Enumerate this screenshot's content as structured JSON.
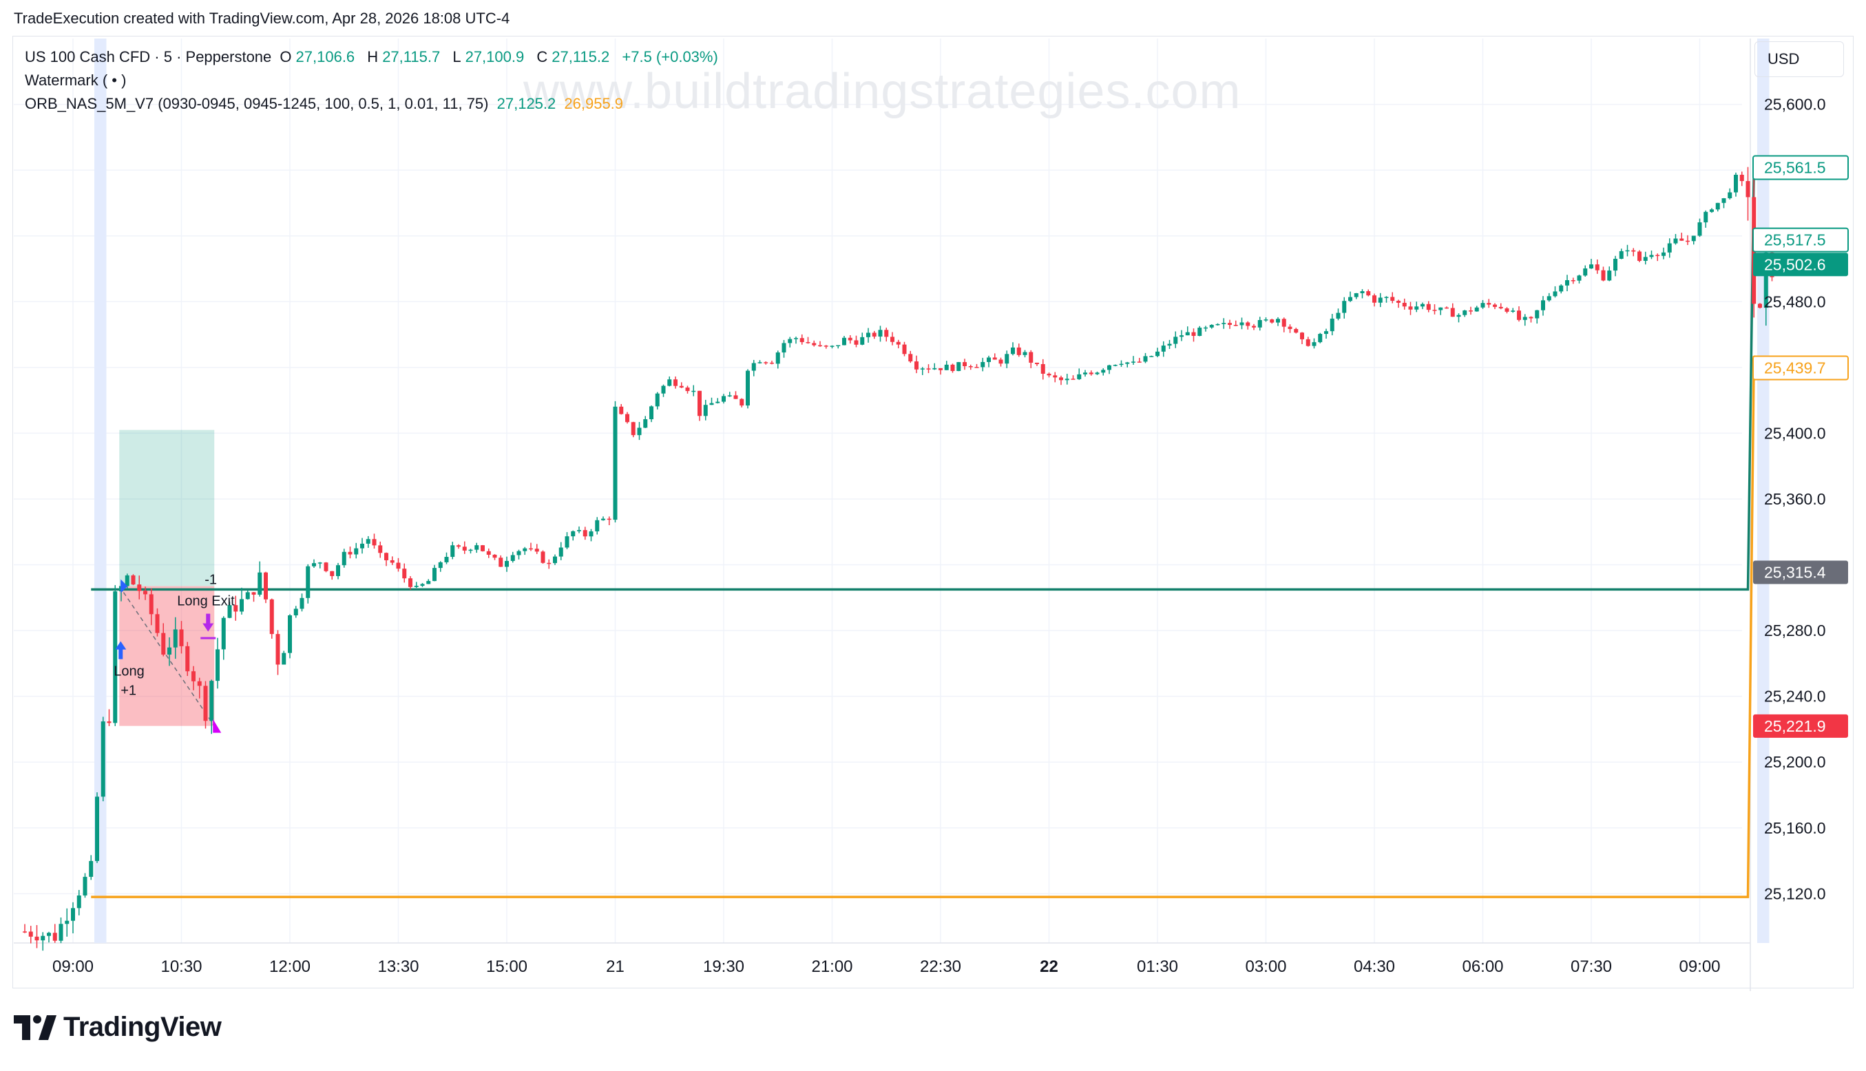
{
  "header": {
    "title": "TradeExecution created with TradingView.com, Apr 28, 2026 18:08 UTC-4"
  },
  "legend": {
    "symbol": "US 100 Cash CFD · 5 · Pepperstone",
    "o_label": "O",
    "o_value": "27,106.6",
    "h_label": "H",
    "h_value": "27,115.7",
    "l_label": "L",
    "l_value": "27,100.9",
    "c_label": "C",
    "c_value": "27,115.2",
    "change": "+7.5 (+0.03%)",
    "watermark_label": "Watermark ( • )",
    "strategy_label": "ORB_NAS_5M_V7 (0930-0945, 0945-1245, 100, 0.5, 1, 0.01, 11, 75)",
    "strategy_value1": "27,125.2",
    "strategy_value2": "26,955.9"
  },
  "watermark_text": "www.buildtradingstrategies.com",
  "currency": "USD",
  "footer": {
    "brand": "TradingView"
  },
  "colors": {
    "up": "#089981",
    "down": "#f23645",
    "orange": "#f7a21b",
    "teal": "#13806b",
    "session": "#e3ebfd"
  },
  "chart_data": {
    "type": "candlestick",
    "y_axis": {
      "min": 25090,
      "max": 25640,
      "ticks": [
        25120,
        25160,
        25200,
        25240,
        25280,
        25320,
        25360,
        25400,
        25440,
        25480,
        25520,
        25560,
        25600
      ],
      "tick_labels": [
        "25,120.0",
        "25,160.0",
        "25,200.0",
        "25,240.0",
        "25,280.0",
        "",
        "25,360.0",
        "25,400.0",
        "",
        "25,480.0",
        "",
        "",
        "25,600.0"
      ]
    },
    "x_axis": {
      "ticks": [
        {
          "idx": 8,
          "label": "09:00",
          "bold": false
        },
        {
          "idx": 26,
          "label": "10:30",
          "bold": false
        },
        {
          "idx": 44,
          "label": "12:00",
          "bold": false
        },
        {
          "idx": 62,
          "label": "13:30",
          "bold": false
        },
        {
          "idx": 80,
          "label": "15:00",
          "bold": false
        },
        {
          "idx": 98,
          "label": "21",
          "bold": false
        },
        {
          "idx": 116,
          "label": "19:30",
          "bold": false
        },
        {
          "idx": 134,
          "label": "21:00",
          "bold": false
        },
        {
          "idx": 152,
          "label": "22:30",
          "bold": false
        },
        {
          "idx": 170,
          "label": "22",
          "bold": true
        },
        {
          "idx": 188,
          "label": "01:30",
          "bold": false
        },
        {
          "idx": 206,
          "label": "03:00",
          "bold": false
        },
        {
          "idx": 224,
          "label": "04:30",
          "bold": false
        },
        {
          "idx": 242,
          "label": "06:00",
          "bold": false
        },
        {
          "idx": 260,
          "label": "07:30",
          "bold": false
        },
        {
          "idx": 278,
          "label": "09:00",
          "bold": false
        }
      ]
    },
    "price_labels": [
      {
        "value": 25561.5,
        "text": "25,561.5",
        "style": "outline-teal"
      },
      {
        "value": 25517.5,
        "text": "25,517.5",
        "style": "outline-teal"
      },
      {
        "value": 25502.6,
        "text": "25,502.6",
        "style": "fill-teal"
      },
      {
        "value": 25439.7,
        "text": "25,439.7",
        "style": "outline-orange"
      },
      {
        "value": 25315.4,
        "text": "25,315.4",
        "style": "fill-gray"
      },
      {
        "value": 25221.9,
        "text": "25,221.9",
        "style": "fill-red"
      }
    ],
    "trade": {
      "entry_idx": 15,
      "exit_idx": 31,
      "entry_price": 25307,
      "target_price": 25402,
      "stop_price": 25222,
      "entry_label": "Long",
      "entry_qty": "+1",
      "exit_label": "Long Exit",
      "exit_qty": "-1"
    },
    "orb_high": [
      {
        "idx": 11,
        "value": 25305
      },
      {
        "idx": 286,
        "value": 25305
      },
      {
        "idx": 287,
        "value": 25561.5
      },
      {
        "idx": 290,
        "value": 25561.5
      }
    ],
    "orb_low": [
      {
        "idx": 11,
        "value": 25118
      },
      {
        "idx": 286,
        "value": 25118
      },
      {
        "idx": 287,
        "value": 25447
      },
      {
        "idx": 288,
        "value": 25439.7
      },
      {
        "idx": 290,
        "value": 25439.7
      }
    ],
    "session_bands": [
      {
        "from": 12,
        "to": 14
      },
      {
        "from": 288,
        "to": 290
      }
    ],
    "anchor_points": [
      [
        0,
        25097
      ],
      [
        5,
        25094
      ],
      [
        9,
        25122
      ],
      [
        11,
        25135
      ],
      [
        13,
        25222
      ],
      [
        14,
        25228
      ],
      [
        15,
        25300
      ],
      [
        17,
        25312
      ],
      [
        19,
        25305
      ],
      [
        21,
        25290
      ],
      [
        23,
        25268
      ],
      [
        25,
        25276
      ],
      [
        27,
        25260
      ],
      [
        29,
        25244
      ],
      [
        30,
        25230
      ],
      [
        31,
        25250
      ],
      [
        33,
        25288
      ],
      [
        35,
        25295
      ],
      [
        37,
        25300
      ],
      [
        39,
        25312
      ],
      [
        40,
        25299
      ],
      [
        41,
        25278
      ],
      [
        42,
        25262
      ],
      [
        43,
        25270
      ],
      [
        44,
        25288
      ],
      [
        46,
        25302
      ],
      [
        47,
        25318
      ],
      [
        49,
        25322
      ],
      [
        51,
        25314
      ],
      [
        53,
        25326
      ],
      [
        55,
        25330
      ],
      [
        57,
        25336
      ],
      [
        59,
        25325
      ],
      [
        61,
        25321
      ],
      [
        63,
        25312
      ],
      [
        65,
        25305
      ],
      [
        67,
        25310
      ],
      [
        69,
        25322
      ],
      [
        71,
        25330
      ],
      [
        73,
        25329
      ],
      [
        75,
        25333
      ],
      [
        77,
        25325
      ],
      [
        79,
        25320
      ],
      [
        81,
        25328
      ],
      [
        83,
        25330
      ],
      [
        85,
        25326
      ],
      [
        87,
        25320
      ],
      [
        89,
        25332
      ],
      [
        91,
        25340
      ],
      [
        93,
        25338
      ],
      [
        95,
        25346
      ],
      [
        97,
        25349
      ],
      [
        98,
        25415
      ],
      [
        100,
        25405
      ],
      [
        101,
        25400
      ],
      [
        103,
        25408
      ],
      [
        105,
        25425
      ],
      [
        107,
        25432
      ],
      [
        109,
        25430
      ],
      [
        111,
        25425
      ],
      [
        112,
        25412
      ],
      [
        114,
        25418
      ],
      [
        116,
        25422
      ],
      [
        118,
        25420
      ],
      [
        119,
        25418
      ],
      [
        120,
        25440
      ],
      [
        122,
        25445
      ],
      [
        124,
        25444
      ],
      [
        126,
        25455
      ],
      [
        128,
        25458
      ],
      [
        130,
        25455
      ],
      [
        132,
        25452
      ],
      [
        134,
        25452
      ],
      [
        136,
        25457
      ],
      [
        138,
        25456
      ],
      [
        140,
        25459
      ],
      [
        142,
        25461
      ],
      [
        144,
        25457
      ],
      [
        146,
        25450
      ],
      [
        148,
        25441
      ],
      [
        150,
        25440
      ],
      [
        152,
        25440
      ],
      [
        154,
        25440
      ],
      [
        156,
        25442
      ],
      [
        158,
        25442
      ],
      [
        160,
        25444
      ],
      [
        162,
        25444
      ],
      [
        164,
        25450
      ],
      [
        166,
        25448
      ],
      [
        168,
        25440
      ],
      [
        170,
        25434
      ],
      [
        172,
        25432
      ],
      [
        174,
        25432
      ],
      [
        176,
        25437
      ],
      [
        178,
        25438
      ],
      [
        180,
        25442
      ],
      [
        182,
        25444
      ],
      [
        184,
        25442
      ],
      [
        186,
        25445
      ],
      [
        188,
        25449
      ],
      [
        190,
        25455
      ],
      [
        192,
        25460
      ],
      [
        194,
        25461
      ],
      [
        196,
        25463
      ],
      [
        198,
        25465
      ],
      [
        200,
        25466
      ],
      [
        202,
        25469
      ],
      [
        204,
        25466
      ],
      [
        206,
        25468
      ],
      [
        208,
        25470
      ],
      [
        210,
        25464
      ],
      [
        212,
        25455
      ],
      [
        214,
        25455
      ],
      [
        216,
        25462
      ],
      [
        218,
        25475
      ],
      [
        220,
        25482
      ],
      [
        222,
        25486
      ],
      [
        224,
        25481
      ],
      [
        226,
        25482
      ],
      [
        228,
        25479
      ],
      [
        230,
        25477
      ],
      [
        232,
        25478
      ],
      [
        234,
        25475
      ],
      [
        236,
        25474
      ],
      [
        238,
        25472
      ],
      [
        240,
        25475
      ],
      [
        242,
        25478
      ],
      [
        244,
        25478
      ],
      [
        246,
        25476
      ],
      [
        248,
        25469
      ],
      [
        250,
        25468
      ],
      [
        252,
        25480
      ],
      [
        254,
        25488
      ],
      [
        256,
        25493
      ],
      [
        258,
        25497
      ],
      [
        260,
        25502
      ],
      [
        262,
        25495
      ],
      [
        264,
        25505
      ],
      [
        266,
        25513
      ],
      [
        268,
        25505
      ],
      [
        270,
        25510
      ],
      [
        272,
        25510
      ],
      [
        274,
        25517
      ],
      [
        276,
        25517
      ],
      [
        278,
        25527
      ],
      [
        280,
        25538
      ],
      [
        282,
        25542
      ],
      [
        284,
        25555
      ],
      [
        286,
        25548
      ],
      [
        287,
        25480
      ],
      [
        288,
        25470
      ],
      [
        289,
        25502
      ]
    ],
    "last_index": 290
  }
}
